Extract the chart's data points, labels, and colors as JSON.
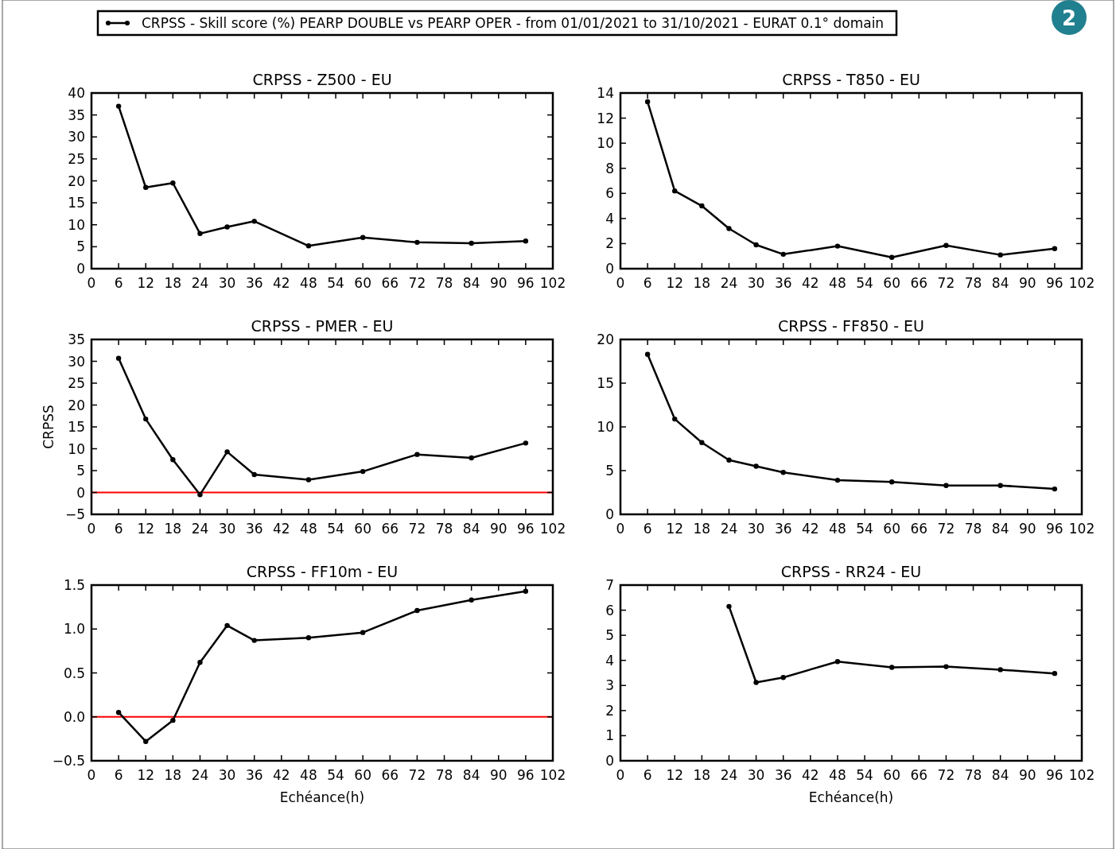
{
  "chart_data": [
    {
      "type": "line",
      "title": "CRPSS - Z500 - EU",
      "x": [
        6,
        12,
        18,
        24,
        30,
        36,
        48,
        60,
        72,
        84,
        96
      ],
      "legend": "top",
      "marker": "circle",
      "line_style": "solid",
      "grid": false,
      "annotations": [
        "2"
      ],
      "series": [
        {
          "name": "CRPSS - Skill score (%)  PEARP DOUBLE vs PEARP OPER - from 01/01/2021 to 31/10/2021 - EURAT 0.1° domain",
          "color": "#000000",
          "values": [
            37,
            18.5,
            19.5,
            8,
            9.5,
            10.8,
            5.2,
            7.1,
            6,
            5.8,
            6.3
          ]
        }
      ],
      "xlim": [
        0,
        102
      ],
      "xticks": [
        0,
        6,
        12,
        18,
        24,
        30,
        36,
        42,
        48,
        54,
        60,
        66,
        72,
        78,
        84,
        90,
        96,
        102
      ],
      "ylim": [
        0,
        40
      ],
      "yticks": [
        0,
        5,
        10,
        15,
        20,
        25,
        30,
        35,
        40
      ]
    },
    {
      "type": "line",
      "title": "CRPSS - T850 - EU",
      "x": [
        6,
        12,
        18,
        24,
        30,
        36,
        48,
        60,
        72,
        84,
        96
      ],
      "marker": "circle",
      "line_style": "solid",
      "grid": false,
      "series": [
        {
          "color": "#000000",
          "values": [
            13.3,
            6.2,
            5.0,
            3.2,
            1.9,
            1.15,
            1.8,
            0.9,
            1.85,
            1.1,
            1.6
          ]
        }
      ],
      "xlim": [
        0,
        102
      ],
      "xticks": [
        0,
        6,
        12,
        18,
        24,
        30,
        36,
        42,
        48,
        54,
        60,
        66,
        72,
        78,
        84,
        90,
        96,
        102
      ],
      "ylim": [
        0,
        14
      ],
      "yticks": [
        0,
        2,
        4,
        6,
        8,
        10,
        12,
        14
      ]
    },
    {
      "type": "line",
      "title": "CRPSS - PMER - EU",
      "ylabel": "CRPSS",
      "x": [
        6,
        12,
        18,
        24,
        30,
        36,
        48,
        60,
        72,
        84,
        96
      ],
      "marker": "circle",
      "line_style": "solid",
      "grid": false,
      "series": [
        {
          "color": "#000000",
          "values": [
            30.7,
            16.8,
            7.5,
            -0.5,
            9.3,
            4.1,
            2.9,
            4.8,
            8.7,
            7.9,
            11.3
          ]
        }
      ],
      "ref_lines": [
        {
          "axis": "y",
          "value": 0,
          "color": "#ff0000"
        }
      ],
      "xlim": [
        0,
        102
      ],
      "xticks": [
        0,
        6,
        12,
        18,
        24,
        30,
        36,
        42,
        48,
        54,
        60,
        66,
        72,
        78,
        84,
        90,
        96,
        102
      ],
      "ylim": [
        -5,
        35
      ],
      "yticks": [
        {
          "value": -5,
          "label": "−5"
        },
        0,
        5,
        10,
        15,
        20,
        25,
        30,
        35
      ]
    },
    {
      "type": "line",
      "title": "CRPSS - FF850 - EU",
      "x": [
        6,
        12,
        18,
        24,
        30,
        36,
        48,
        60,
        72,
        84,
        96
      ],
      "marker": "circle",
      "line_style": "solid",
      "grid": false,
      "series": [
        {
          "color": "#000000",
          "values": [
            18.3,
            10.9,
            8.2,
            6.2,
            5.5,
            4.8,
            3.9,
            3.7,
            3.3,
            3.3,
            2.9
          ]
        }
      ],
      "xlim": [
        0,
        102
      ],
      "xticks": [
        0,
        6,
        12,
        18,
        24,
        30,
        36,
        42,
        48,
        54,
        60,
        66,
        72,
        78,
        84,
        90,
        96,
        102
      ],
      "ylim": [
        0,
        20
      ],
      "yticks": [
        0,
        5,
        10,
        15,
        20
      ]
    },
    {
      "type": "line",
      "title": "CRPSS - FF10m - EU",
      "xlabel": "Echéance(h)",
      "x": [
        6,
        12,
        18,
        24,
        30,
        36,
        48,
        60,
        72,
        84,
        96
      ],
      "marker": "circle",
      "line_style": "solid",
      "grid": false,
      "series": [
        {
          "color": "#000000",
          "values": [
            0.05,
            -0.28,
            -0.04,
            0.62,
            1.04,
            0.87,
            0.9,
            0.96,
            1.21,
            1.33,
            1.43
          ]
        }
      ],
      "ref_lines": [
        {
          "axis": "y",
          "value": 0,
          "color": "#ff0000"
        }
      ],
      "xlim": [
        0,
        102
      ],
      "xticks": [
        0,
        6,
        12,
        18,
        24,
        30,
        36,
        42,
        48,
        54,
        60,
        66,
        72,
        78,
        84,
        90,
        96,
        102
      ],
      "ylim": [
        -0.5,
        1.5
      ],
      "yticks": [
        {
          "value": -0.5,
          "label": "−0.5"
        },
        {
          "value": 0,
          "label": "0.0"
        },
        0.5,
        {
          "value": 1,
          "label": "1.0"
        },
        1.5
      ]
    },
    {
      "type": "line",
      "title": "CRPSS - RR24 - EU",
      "xlabel": "Echéance(h)",
      "x": [
        24,
        30,
        36,
        48,
        60,
        72,
        84,
        96
      ],
      "marker": "circle",
      "line_style": "solid",
      "grid": false,
      "series": [
        {
          "color": "#000000",
          "values": [
            6.15,
            3.12,
            3.32,
            3.95,
            3.72,
            3.75,
            3.63,
            3.48
          ]
        }
      ],
      "xlim": [
        0,
        102
      ],
      "xticks": [
        0,
        6,
        12,
        18,
        24,
        30,
        36,
        42,
        48,
        54,
        60,
        66,
        72,
        78,
        84,
        90,
        96,
        102
      ],
      "ylim": [
        0,
        7
      ],
      "yticks": [
        0,
        1,
        2,
        3,
        4,
        5,
        6,
        7
      ]
    }
  ]
}
